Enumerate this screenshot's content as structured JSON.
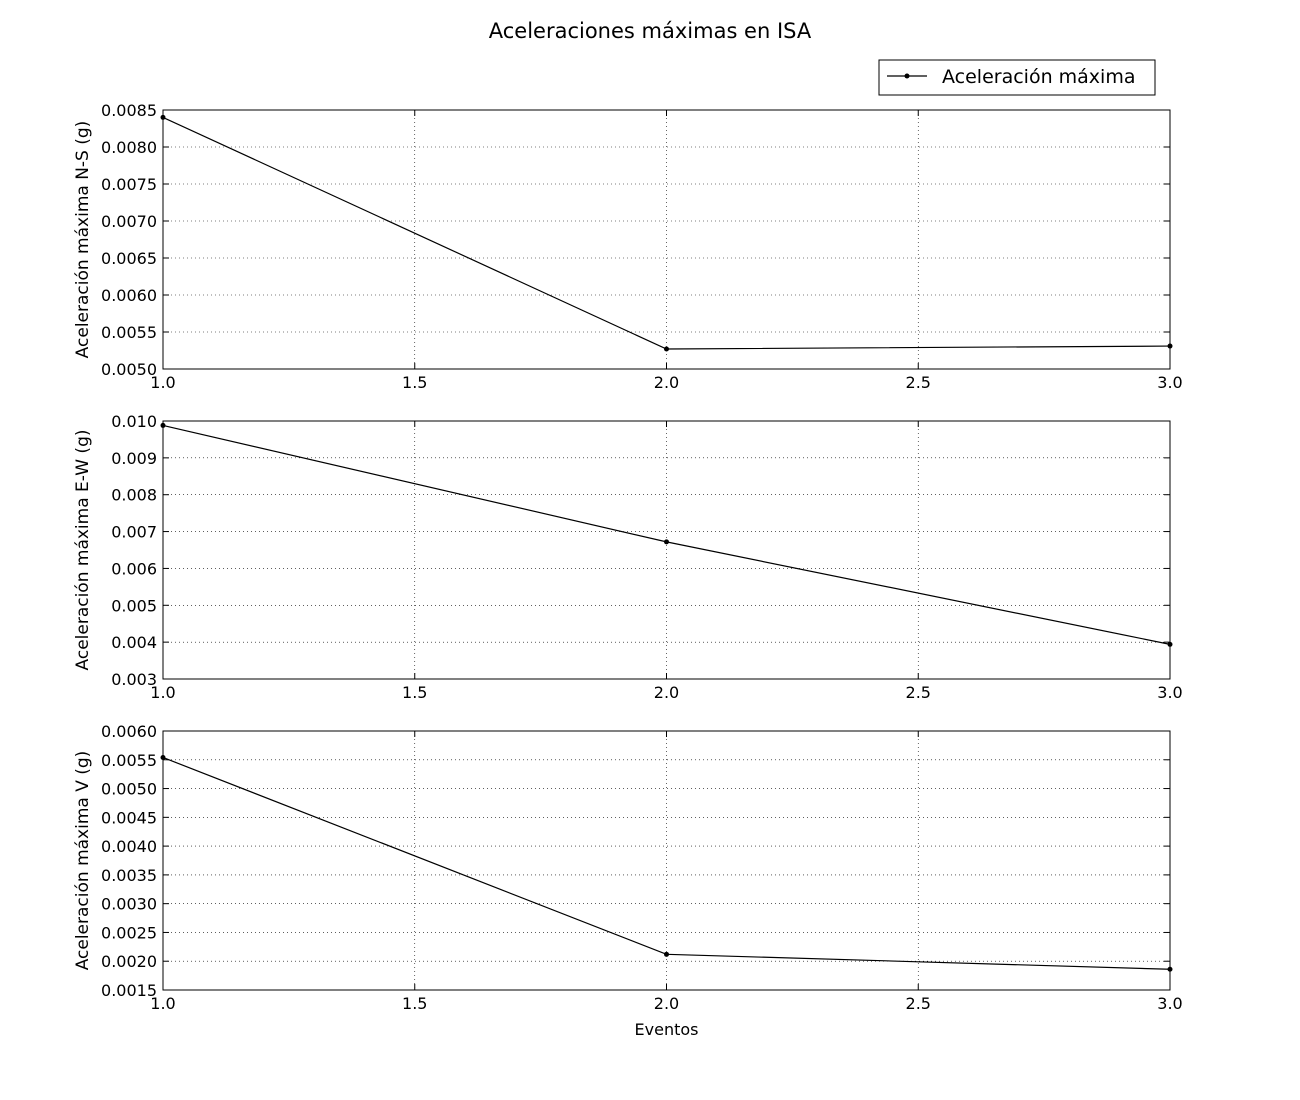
{
  "figure": {
    "title": "Aceleraciones máximas en ISA",
    "legend": {
      "label": "Aceleración máxima",
      "placement": "top-right"
    },
    "xlabel": "Eventos"
  },
  "chart_data": [
    {
      "type": "line",
      "ylabel": "Aceleración máxima N-S (g)",
      "xlabel": "",
      "x": [
        1.0,
        2.0,
        3.0
      ],
      "series": [
        {
          "name": "Aceleración máxima",
          "values": [
            0.0084,
            0.00527,
            0.00531
          ]
        }
      ],
      "xlim": [
        1.0,
        3.0
      ],
      "ylim": [
        0.005,
        0.0085
      ],
      "xticks": [
        "1.0",
        "1.5",
        "2.0",
        "2.5",
        "3.0"
      ],
      "yticks": [
        "0.0050",
        "0.0055",
        "0.0060",
        "0.0065",
        "0.0070",
        "0.0075",
        "0.0080",
        "0.0085"
      ],
      "grid": true,
      "color": "#000000"
    },
    {
      "type": "line",
      "ylabel": "Aceleración máxima E-W (g)",
      "xlabel": "",
      "x": [
        1.0,
        2.0,
        3.0
      ],
      "series": [
        {
          "name": "Aceleración máxima",
          "values": [
            0.00988,
            0.00672,
            0.00394
          ]
        }
      ],
      "xlim": [
        1.0,
        3.0
      ],
      "ylim": [
        0.003,
        0.01
      ],
      "xticks": [
        "1.0",
        "1.5",
        "2.0",
        "2.5",
        "3.0"
      ],
      "yticks": [
        "0.003",
        "0.004",
        "0.005",
        "0.006",
        "0.007",
        "0.008",
        "0.009",
        "0.010"
      ],
      "grid": true,
      "color": "#000000"
    },
    {
      "type": "line",
      "ylabel": "Aceleración máxima V (g)",
      "xlabel": "Eventos",
      "x": [
        1.0,
        2.0,
        3.0
      ],
      "series": [
        {
          "name": "Aceleración máxima",
          "values": [
            0.00554,
            0.00212,
            0.00186
          ]
        }
      ],
      "xlim": [
        1.0,
        3.0
      ],
      "ylim": [
        0.0015,
        0.006
      ],
      "xticks": [
        "1.0",
        "1.5",
        "2.0",
        "2.5",
        "3.0"
      ],
      "yticks": [
        "0.0015",
        "0.0020",
        "0.0025",
        "0.0030",
        "0.0035",
        "0.0040",
        "0.0045",
        "0.0050",
        "0.0055",
        "0.0060"
      ],
      "grid": true,
      "color": "#000000"
    }
  ]
}
